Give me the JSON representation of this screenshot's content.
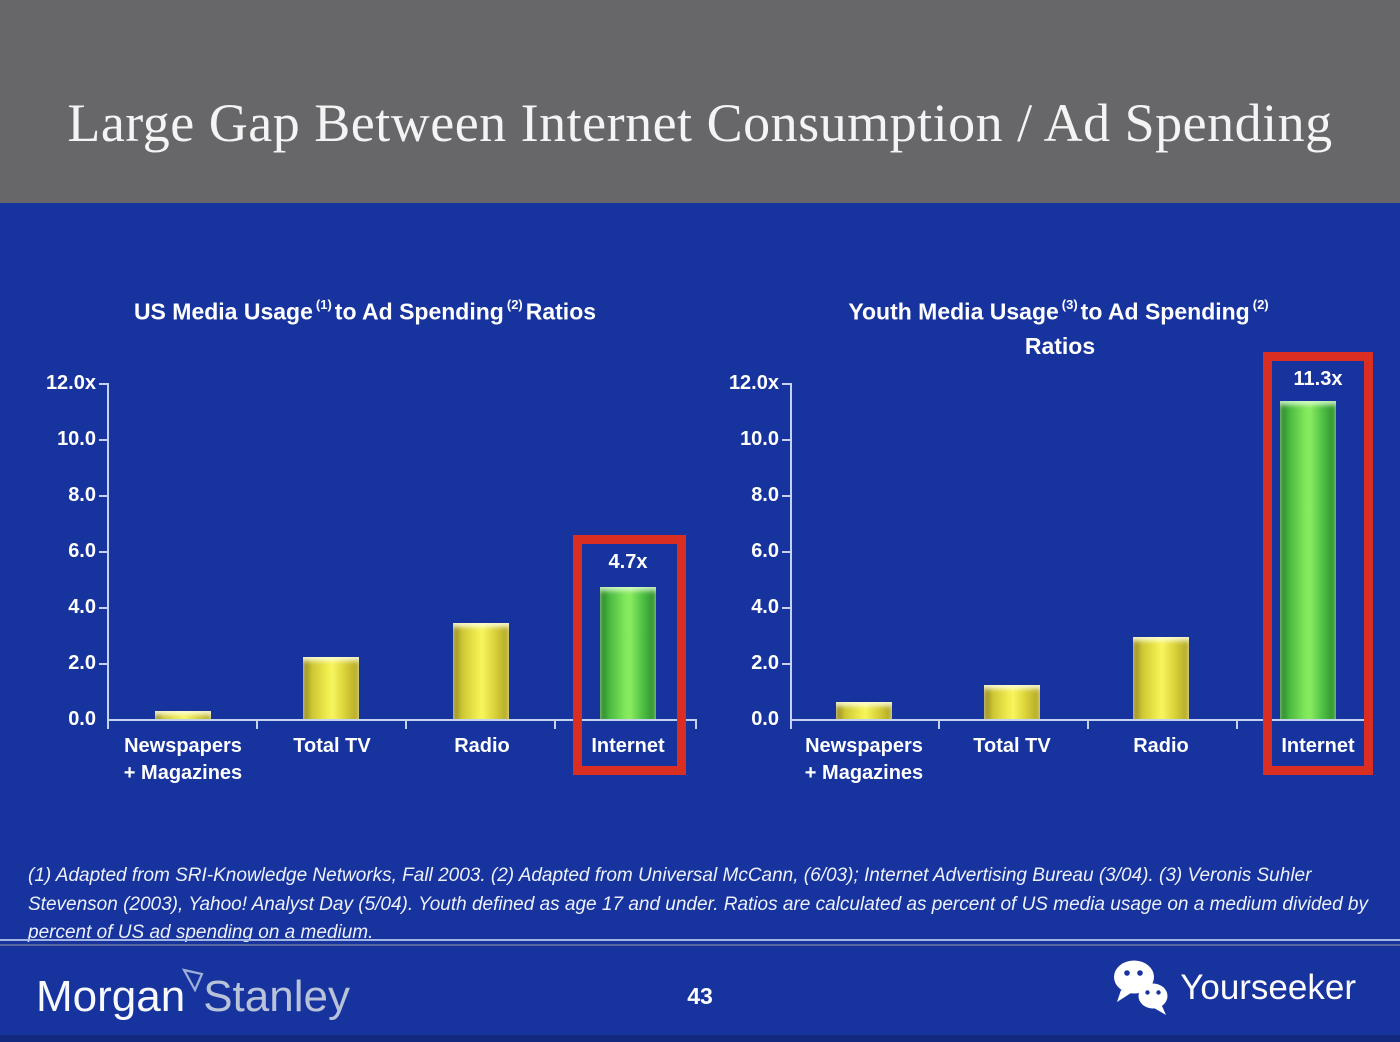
{
  "slide_title": "Large Gap Between Internet Consumption / Ad Spending",
  "charts_ui": {
    "left_title": {
      "p1": "US Media Usage",
      "s1": "(1)",
      "p2": "to Ad Spending",
      "s2": "(2)",
      "p3": "Ratios"
    },
    "right_title": {
      "p1": "Youth Media Usage",
      "s1": "(3)",
      "p2": "to Ad Spending",
      "s2": "(2)",
      "p3": "Ratios"
    }
  },
  "chart_data": [
    {
      "type": "bar",
      "title": "US Media Usage (1) to Ad Spending (2) Ratios",
      "categories": [
        "Newspapers + Magazines",
        "Total TV",
        "Radio",
        "Internet"
      ],
      "cat_lines": [
        [
          "Newspapers",
          "+ Magazines"
        ],
        [
          "Total TV",
          ""
        ],
        [
          "Radio",
          ""
        ],
        [
          "Internet",
          ""
        ]
      ],
      "values": [
        0.3,
        2.2,
        3.4,
        4.7
      ],
      "value_labels": [
        "",
        "",
        "",
        "4.7x"
      ],
      "bar_colors": [
        "yellow",
        "yellow",
        "yellow",
        "green"
      ],
      "highlight_index": 3,
      "ytick_labels": [
        "12.0x",
        "10.0",
        "8.0",
        "6.0",
        "4.0",
        "2.0",
        "0.0"
      ],
      "ylim": [
        0,
        12
      ],
      "grid": false,
      "legend": "none",
      "xlabel": "",
      "ylabel": ""
    },
    {
      "type": "bar",
      "title": "Youth Media Usage (3) to Ad Spending (2) Ratios",
      "categories": [
        "Newspapers + Magazines",
        "Total TV",
        "Radio",
        "Internet"
      ],
      "cat_lines": [
        [
          "Newspapers",
          "+ Magazines"
        ],
        [
          "Total TV",
          ""
        ],
        [
          "Radio",
          ""
        ],
        [
          "Internet",
          ""
        ]
      ],
      "values": [
        0.6,
        1.2,
        2.9,
        11.3
      ],
      "value_labels": [
        "",
        "",
        "",
        "11.3x"
      ],
      "bar_colors": [
        "yellow",
        "yellow",
        "yellow",
        "green"
      ],
      "highlight_index": 3,
      "ytick_labels": [
        "12.0x",
        "10.0",
        "8.0",
        "6.0",
        "4.0",
        "2.0",
        "0.0"
      ],
      "ylim": [
        0,
        12
      ],
      "grid": false,
      "legend": "none",
      "xlabel": "",
      "ylabel": ""
    }
  ],
  "footnote": "(1) Adapted from SRI-Knowledge Networks, Fall 2003.  (2) Adapted from Universal McCann, (6/03); Internet Advertising Bureau (3/04). (3) Veronis Suhler Stevenson (2003), Yahoo! Analyst Day (5/04).  Youth defined as age 17 and under.  Ratios are calculated as percent of US media usage on a medium divided by percent of US ad spending on a medium.",
  "footer": {
    "brand_part1": "Morgan",
    "brand_part2": "Stanley",
    "page_number": "43",
    "watermark_label": "Yourseeker"
  },
  "colors": {
    "header_bg": "#67676a",
    "body_bg": "#16339e",
    "bar_yellow": "#f2ef52",
    "bar_green": "#7ee659",
    "highlight_red": "#db2e23",
    "axis": "#c5d2f0"
  }
}
